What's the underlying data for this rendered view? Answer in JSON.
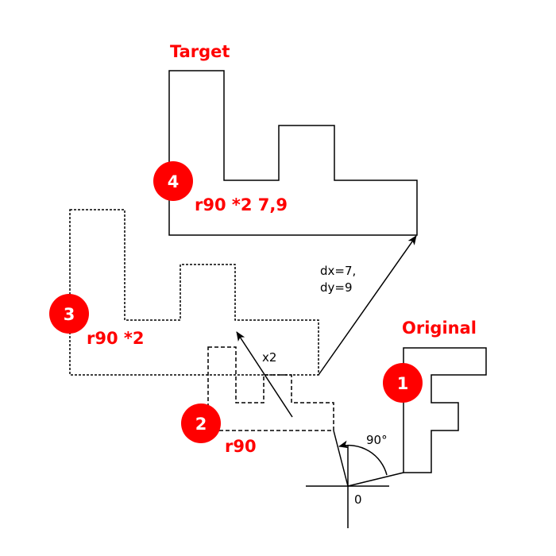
{
  "labels": {
    "original": "Original",
    "target": "Target",
    "step2": "r90",
    "step3": "r90 *2",
    "step4": "r90 *2 7,9",
    "scale": "x2",
    "translate_line1": "dx=7,",
    "translate_line2": "dy=9",
    "angle": "90°",
    "origin": "0"
  },
  "badges": [
    "1",
    "2",
    "3",
    "4"
  ],
  "colors": {
    "accent": "#ff0000",
    "stroke": "#000000"
  }
}
